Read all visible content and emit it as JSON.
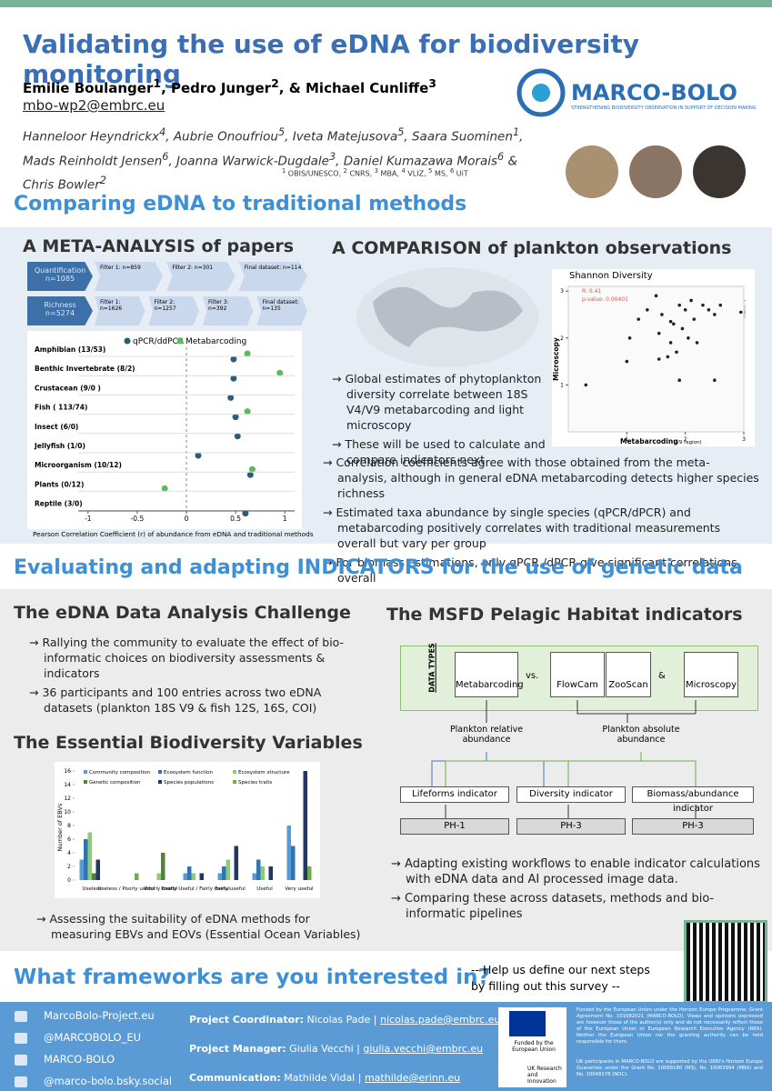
{
  "header": {
    "title": "Validating the use of eDNA for biodiversity monitoring",
    "authors": [
      {
        "name": "Emilie Boulanger",
        "sup": "1"
      },
      {
        "name": ", Pedro Junger",
        "sup": "2"
      },
      {
        "name": ", & Michael Cunliffe",
        "sup": "3"
      }
    ],
    "email": "mbo-wp2@embrc.eu",
    "coauthors": [
      {
        "name": "Hanneloor Heyndrickx",
        "sup": "4"
      },
      {
        "name": ", Aubrie Onoufriou",
        "sup": "5"
      },
      {
        "name": ", Iveta Matejusova",
        "sup": "5"
      },
      {
        "name": ", Saara Suominen",
        "sup": "1"
      },
      {
        "name": ", Mads Reinholdt Jensen",
        "sup": "6"
      },
      {
        "name": ", Joanna Warwick-Dugdale",
        "sup": "3"
      },
      {
        "name": ", Daniel Kumazawa Morais",
        "sup": "6"
      },
      {
        "name": " & Chris Bowler",
        "sup": "2"
      }
    ],
    "affiliations": [
      {
        "sup": "1",
        "name": " OBIS/UNESCO, "
      },
      {
        "sup": "2",
        "name": " CNRS, "
      },
      {
        "sup": "3",
        "name": " MBA, "
      },
      {
        "sup": "4",
        "name": " VLIZ, "
      },
      {
        "sup": "5",
        "name": " MS, "
      },
      {
        "sup": "6",
        "name": " UiT"
      }
    ],
    "logo": "MARCO-BOLO",
    "tagline": "STRENGTHENING BIODIVERSITY OBSERVATION IN SUPPORT OF DECISION MAKING"
  },
  "section1": {
    "heading": "Comparing eDNA to traditional methods",
    "left_heading": "A META-ANALYSIS of papers",
    "right_heading": "A COMPARISON of plankton observations",
    "flow": [
      {
        "label": "Quantification",
        "n": "n=1085",
        "steps": [
          "Filter 1: n=859",
          "Filter 2: n=301",
          "Final dataset: n=114"
        ]
      },
      {
        "label": "Richness",
        "n": "n=5274",
        "steps": [
          "Filter 1: n=1626",
          "Filter 2: n=1257",
          "Filter 3: n=392",
          "Final dataset: n=135"
        ]
      }
    ],
    "bullets_right": [
      "Global estimates of phytoplankton diversity correlate between 18S V4/V9 metabarcoding and light microscopy",
      "These will be used to calculate and compare indicators next"
    ],
    "bullets_wide": [
      "Correlation coefficients agree with those obtained from the meta-analysis, although in general eDNA metabarcoding detects higher species richness",
      "Estimated taxa abundance by single species (qPCR/dPCR) and metabarcoding positively correlates with traditional measurements overall but vary per group",
      "For biomass estimations, only qPCR /dPCR give significant correlations overall"
    ]
  },
  "section2": {
    "heading": "Evaluating and adapting INDICATORS for the use of genetic data",
    "challenge_heading": "The eDNA Data Analysis Challenge",
    "challenge_bullets": [
      "Rallying the community to evaluate the  effect of bio-informatic choices on biodiversity assessments & indicators",
      "36 participants and 100 entries across two eDNA datasets (plankton 18S V9 & fish 12S, 16S, COI)"
    ],
    "ebv_heading": "The Essential Biodiversity Variables",
    "ebv_bullet": "Assessing the suitability of eDNA methods for measuring EBVs and EOVs (Essential Ocean Variables)",
    "msfd_heading": "The MSFD Pelagic Habitat indicators",
    "diagram": {
      "data_types": "DATA TYPES",
      "metabarcoding": "Metabarcoding",
      "vs": "vs.",
      "flowcam": "FlowCam",
      "zooscan": "ZooScan",
      "amp": "&",
      "microscopy": "Microscopy",
      "relative": "Plankton relative abundance",
      "absolute": "Plankton absolute abundance",
      "indicators": [
        "Lifeforms indicator",
        "Diversity indicator",
        "Biomass/abundance indicator"
      ],
      "codes": [
        "PH-1",
        "PH-3",
        "PH-3"
      ]
    },
    "msfd_bullets": [
      "Adapting existing workflows to enable indicator calculations with eDNA data and AI processed image data.",
      "Comparing these across datasets, methods and bio-informatic pipelines"
    ]
  },
  "section3": {
    "heading": "What frameworks are you interested in?",
    "survey": "-- Help us define our next steps by filling out this survey --"
  },
  "footer": {
    "links": [
      "MarcoBolo-Project.eu",
      "@MARCOBOLO_EU",
      "MARCO-BOLO",
      "@marco-bolo.bsky.social"
    ],
    "contacts": [
      {
        "role": "Project Coordinator:",
        "name": " Nicolas Pade | ",
        "mail": "nicolas.pade@embrc.eu"
      },
      {
        "role": "Project Manager:",
        "name": " Giulia Vecchi | ",
        "mail": "giulia.vecchi@embrc.eu"
      },
      {
        "role": "Communication:",
        "name": " Mathilde Vidal | ",
        "mail": "mathilde@erinn.eu"
      }
    ],
    "eu": "Funded by the European Union",
    "eu_text": "Funded by the European Union under the Horizon Europe Programme, Grant Agreement No. 101082021 (MARCO-BOLO). Views and opinions expressed are however those of the author(s) only and do not necessarily reflect those of the European Union or European Research Executive Agency (REA). Neither the European Union nor the granting authority can be held responsible for them.",
    "uk": "UK Research and Innovation",
    "uk_text": "UK participants in MARCO-BOLO are supported by the UKRI's Horizon Europe Guarantee under the Grant No. 10068180 (MS), No. 10063994 (MBA) and No. 10048178 (NOC)."
  },
  "chart_data": [
    {
      "type": "dot",
      "categories": [
        "Amphibian (13/53)",
        "Benthic Invertebrate (8/2)",
        "Crustacean (9/0 )",
        "Fish ( 113/74)",
        "Insect (6/0)",
        "Jellyfish (1/0)",
        "Microorganism (10/12)",
        "Plants (0/12)",
        "Reptile (3/0)"
      ],
      "series": [
        {
          "name": "qPCR/ddPCR",
          "color": "#2d5c78",
          "values": [
            0.48,
            0.48,
            0.45,
            0.5,
            0.52,
            0.12,
            0.65,
            null,
            0.6
          ]
        },
        {
          "name": "Metabarcoding",
          "color": "#5cb85c",
          "values": [
            0.62,
            0.95,
            null,
            0.62,
            null,
            null,
            0.67,
            -0.22,
            null
          ]
        }
      ],
      "xlim": [
        -1.1,
        1.1
      ],
      "xticks": [
        -1,
        -0.5,
        0,
        0.5,
        1
      ],
      "xlabel": "Pearson Correlation Coefficient (r) of abundance from eDNA and traditional methods"
    },
    {
      "type": "scatter",
      "title": "Shannon Diversity",
      "annotations": [
        "R: 0.41",
        "p-value: 0.00401"
      ],
      "xlabel": "Metabarcoding",
      "xlabel_note": "(V9 region)",
      "ylabel": "Microscopy",
      "color": "#222222",
      "x": [
        0.3,
        1.0,
        1.05,
        1.2,
        1.35,
        1.5,
        1.55,
        1.6,
        1.7,
        1.75,
        1.8,
        1.85,
        1.9,
        1.95,
        2.0,
        2.05,
        2.1,
        2.15,
        2.2,
        2.3,
        2.4,
        2.5,
        2.6,
        2.95,
        1.9,
        2.5,
        1.55,
        1.75
      ],
      "values": [
        1.0,
        1.5,
        2.0,
        2.4,
        2.6,
        2.9,
        2.1,
        2.5,
        1.6,
        1.9,
        2.3,
        1.7,
        2.7,
        2.2,
        2.6,
        2.0,
        2.8,
        2.4,
        1.9,
        2.7,
        2.6,
        2.5,
        2.7,
        2.55,
        1.1,
        1.1,
        1.55,
        2.35
      ],
      "xlim": [
        0,
        3
      ],
      "xticks": [
        1,
        2,
        3
      ],
      "ylim": [
        0,
        3.1
      ],
      "yticks": [
        1,
        2,
        3
      ]
    },
    {
      "type": "bar",
      "ylabel": "Number of EBVs",
      "categories": [
        "Useless",
        "Useless / Poorly useful",
        "Poorly useful",
        "Poorly Useful / Fairly useful",
        "Fairly useful",
        "Useful",
        "Very useful"
      ],
      "series": [
        {
          "name": "Community composition",
          "color": "#5b9bd5",
          "values": [
            3,
            0,
            0,
            1,
            1,
            1,
            8
          ]
        },
        {
          "name": "Ecosystem function",
          "color": "#2e75b6",
          "values": [
            6,
            0,
            0,
            2,
            2,
            3,
            5
          ]
        },
        {
          "name": "Ecosystem structure",
          "color": "#8fc97a",
          "values": [
            7,
            0,
            1,
            1,
            3,
            2,
            0
          ]
        },
        {
          "name": "Genetic composition",
          "color": "#548235",
          "values": [
            1,
            0,
            4,
            0,
            0,
            0,
            0
          ]
        },
        {
          "name": "Species populations",
          "color": "#1f3864",
          "values": [
            3,
            0,
            0,
            1,
            5,
            2,
            16
          ]
        },
        {
          "name": "Species traits",
          "color": "#70ad47",
          "values": [
            0,
            1,
            0,
            0,
            0,
            0,
            2
          ]
        }
      ],
      "ylim": [
        0,
        16
      ],
      "yticks": [
        0,
        2,
        4,
        6,
        8,
        10,
        12,
        14,
        16
      ]
    }
  ]
}
